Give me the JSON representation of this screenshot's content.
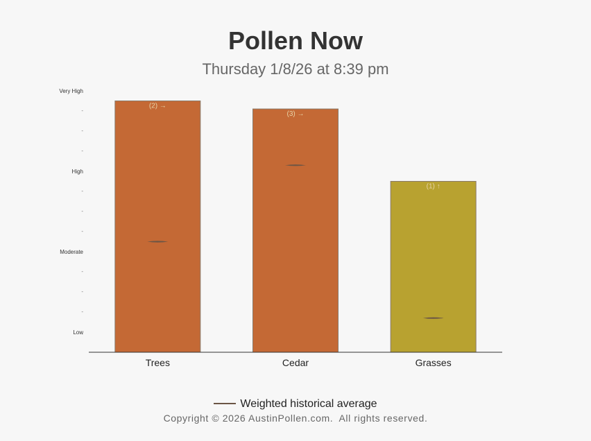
{
  "page": {
    "title": "Pollen Now",
    "subtitle": "Thursday 1/8/26 at 8:39 pm",
    "copyright": "Copyright © 2026 AustinPollen.com.  All rights reserved."
  },
  "legend": {
    "label": "Weighted historical average",
    "color": "#6b5545"
  },
  "chart_data": {
    "type": "bar",
    "title": "",
    "xlabel": "",
    "ylabel": "",
    "ylim": [
      0,
      13.5
    ],
    "y_ticks": [
      {
        "value": 1,
        "label": "Low"
      },
      {
        "value": 5,
        "label": "Moderate"
      },
      {
        "value": 9,
        "label": "High"
      },
      {
        "value": 13,
        "label": "Very High"
      }
    ],
    "y_minor_ticks": [
      {
        "value": 0.9,
        "label": "-"
      },
      {
        "value": 2,
        "label": "-"
      },
      {
        "value": 3,
        "label": "-"
      },
      {
        "value": 4,
        "label": "-"
      },
      {
        "value": 6,
        "label": "-"
      },
      {
        "value": 7,
        "label": "-"
      },
      {
        "value": 8,
        "label": "-"
      },
      {
        "value": 10,
        "label": "-"
      },
      {
        "value": 11,
        "label": "-"
      },
      {
        "value": 12,
        "label": "-"
      }
    ],
    "categories": [
      "Trees",
      "Cedar",
      "Grasses"
    ],
    "values": [
      12.5,
      12.1,
      8.5
    ],
    "bar_labels": [
      "(2) →",
      "(3) →",
      "(1) ↑"
    ],
    "bar_colors": [
      "#c46935",
      "#c46935",
      "#b8a230"
    ],
    "historical_average": [
      5.5,
      9.3,
      1.7
    ],
    "grid": false,
    "legend_position": "bottom"
  }
}
